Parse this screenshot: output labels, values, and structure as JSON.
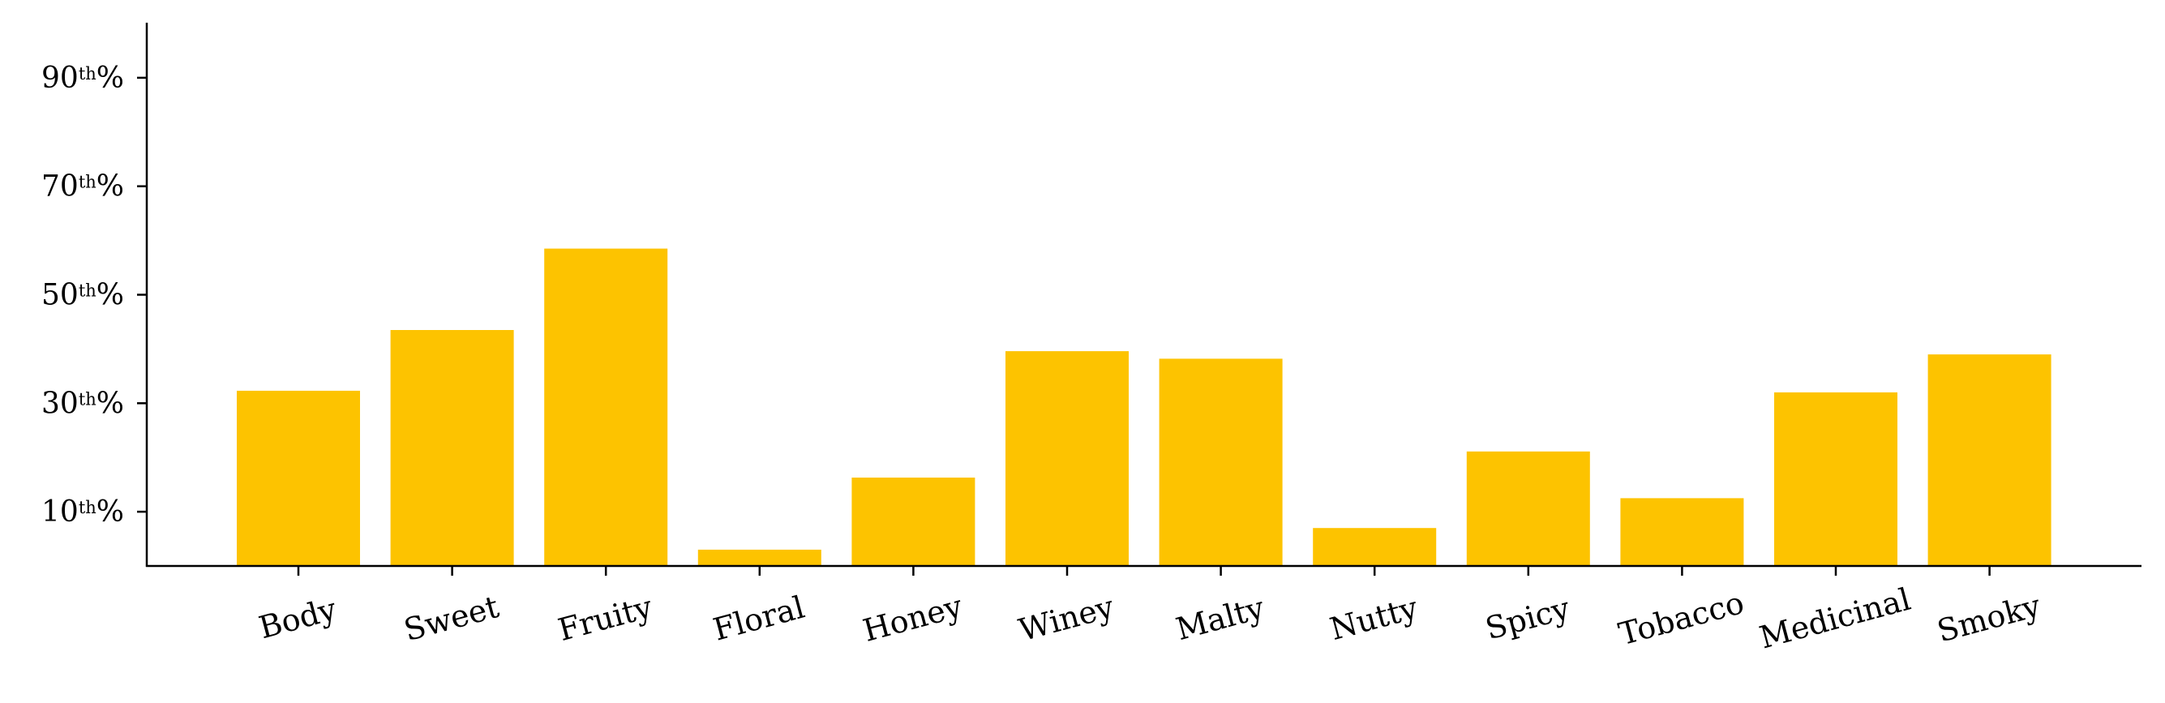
{
  "chart_data": {
    "type": "bar",
    "title": "",
    "xlabel": "",
    "ylabel": "",
    "ylim": [
      0,
      100
    ],
    "bar_color": "#FDC300",
    "grid": false,
    "categories": [
      "Body",
      "Sweet",
      "Fruity",
      "Floral",
      "Honey",
      "Winey",
      "Malty",
      "Nutty",
      "Spicy",
      "Tobacco",
      "Medicinal",
      "Smoky"
    ],
    "values": [
      32.3,
      43.5,
      58.5,
      3.0,
      16.3,
      39.6,
      38.2,
      7.0,
      21.1,
      12.5,
      32.0,
      39.0
    ],
    "yticks": [
      {
        "value": 10,
        "num": "10",
        "sup": "th",
        "suffix": "%"
      },
      {
        "value": 30,
        "num": "30",
        "sup": "th",
        "suffix": "%"
      },
      {
        "value": 50,
        "num": "50",
        "sup": "th",
        "suffix": "%"
      },
      {
        "value": 70,
        "num": "70",
        "sup": "th",
        "suffix": "%"
      },
      {
        "value": 90,
        "num": "90",
        "sup": "th",
        "suffix": "%"
      }
    ]
  }
}
